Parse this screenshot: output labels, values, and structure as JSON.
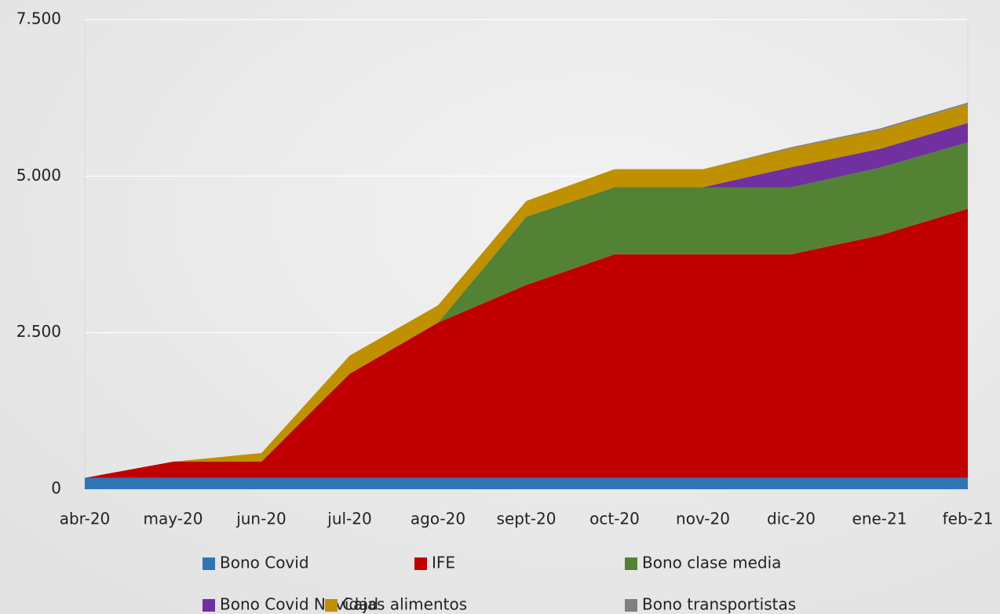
{
  "chart_data": {
    "type": "stacked-area",
    "categories": [
      "abr-20",
      "may-20",
      "jun-20",
      "jul-20",
      "ago-20",
      "sept-20",
      "oct-20",
      "nov-20",
      "dic-20",
      "ene-21",
      "feb-21"
    ],
    "series": [
      {
        "name": "Bono Covid",
        "color": "#2e75b6",
        "values": [
          180,
          180,
          180,
          180,
          180,
          180,
          180,
          180,
          180,
          180,
          180
        ]
      },
      {
        "name": "IFE",
        "color": "#c00000",
        "values": [
          0,
          259,
          259,
          1664,
          2480,
          3082,
          3572,
          3572,
          3572,
          3873,
          4299
        ]
      },
      {
        "name": "Bono clase media",
        "color": "#548235",
        "values": [
          0,
          0,
          0,
          0,
          0,
          1090,
          1070,
          1070,
          1070,
          1080,
          1060
        ]
      },
      {
        "name": "Bono Covid Navidad",
        "color": "#7030a0",
        "values": [
          0,
          0,
          0,
          0,
          0,
          0,
          0,
          0,
          320,
          300,
          310
        ]
      },
      {
        "name": "Cajas alimentos",
        "color": "#bf9000",
        "values": [
          0,
          0,
          138,
          289,
          276,
          251,
          289,
          289,
          301,
          301,
          301
        ]
      },
      {
        "name": "Bono transportistas",
        "color": "#7f7f7f",
        "values": [
          0,
          0,
          0,
          0,
          0,
          0,
          0,
          0,
          20,
          25,
          25
        ]
      }
    ],
    "ylim": [
      0,
      7500
    ],
    "yticks": [
      0,
      {
        "value": 2500,
        "label": "2.500"
      },
      {
        "value": 5000,
        "label": "5.000"
      },
      {
        "value": 7500,
        "label": "7.500"
      }
    ],
    "grid": true
  }
}
